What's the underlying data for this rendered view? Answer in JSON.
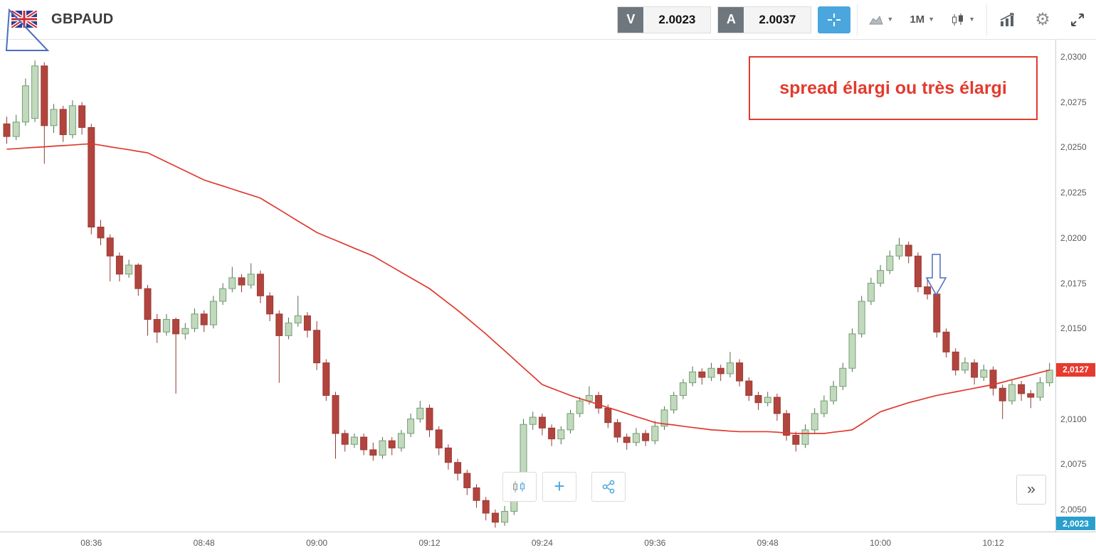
{
  "header": {
    "symbol": "GBPAUD",
    "sell_label": "V",
    "sell_price": "2.0023",
    "buy_label": "A",
    "buy_price": "2.0037",
    "timeframe": "1M"
  },
  "annotations": {
    "spread_note": "spread élargi ou très élargi"
  },
  "price_axis": {
    "ticks": [
      {
        "label": "2,0300",
        "value": 2.03
      },
      {
        "label": "2,0275",
        "value": 2.0275
      },
      {
        "label": "2,0250",
        "value": 2.025
      },
      {
        "label": "2,0225",
        "value": 2.0225
      },
      {
        "label": "2,0200",
        "value": 2.02
      },
      {
        "label": "2,0175",
        "value": 2.0175
      },
      {
        "label": "2,0150",
        "value": 2.015
      },
      {
        "label": "2,0100",
        "value": 2.01
      },
      {
        "label": "2,0075",
        "value": 2.0075
      },
      {
        "label": "2,0050",
        "value": 2.005
      }
    ],
    "current_tag": {
      "label": "2,0127",
      "value": 2.0127
    },
    "bid_tag": {
      "label": "2,0023",
      "value": 2.0023
    }
  },
  "time_axis": {
    "ticks": [
      "08:36",
      "08:48",
      "09:00",
      "09:12",
      "09:24",
      "09:36",
      "09:48",
      "10:00",
      "10:12"
    ]
  },
  "bottom_toolbar": {
    "collapse_label": "»"
  },
  "colors": {
    "candle_up_fill": "#c2d9bd",
    "candle_up_stroke": "#74a074",
    "candle_down_fill": "#b2443e",
    "candle_down_stroke": "#9c3a34",
    "wick_up": "#4f6f4f",
    "wick_down": "#933a35",
    "ma_line": "#e0392e",
    "accent_blue": "#4ba6de",
    "tag_red": "#e8392e",
    "tag_blue": "#2a9fcc",
    "annotation_red": "#e23b2e",
    "annotation_blue": "#4a6fbf"
  },
  "chart_data": {
    "type": "candlestick",
    "symbol": "GBPAUD",
    "interval": "1M",
    "start_time": "08:27",
    "interval_minutes": 1,
    "price_range_visible": [
      2.004,
      2.0305
    ],
    "overlay": "red moving-average line ending at 2.0127",
    "ohlc": [
      [
        2.0263,
        2.0267,
        2.0252,
        2.0256
      ],
      [
        2.0256,
        2.0268,
        2.0254,
        2.0264
      ],
      [
        2.0264,
        2.0288,
        2.0262,
        2.0284
      ],
      [
        2.0266,
        2.0298,
        2.0264,
        2.0295
      ],
      [
        2.0295,
        2.0297,
        2.0241,
        2.0262
      ],
      [
        2.0262,
        2.0274,
        2.0258,
        2.0271
      ],
      [
        2.0271,
        2.0273,
        2.0253,
        2.0257
      ],
      [
        2.0257,
        2.0276,
        2.0255,
        2.0273
      ],
      [
        2.0273,
        2.0275,
        2.0257,
        2.0261
      ],
      [
        2.0261,
        2.0263,
        2.0202,
        2.0206
      ],
      [
        2.0206,
        2.021,
        2.0196,
        2.02
      ],
      [
        2.02,
        2.0202,
        2.0176,
        2.019
      ],
      [
        2.019,
        2.0192,
        2.0176,
        2.018
      ],
      [
        2.018,
        2.0188,
        2.0178,
        2.0185
      ],
      [
        2.0185,
        2.0186,
        2.0168,
        2.0172
      ],
      [
        2.0172,
        2.0174,
        2.0146,
        2.0155
      ],
      [
        2.0155,
        2.0158,
        2.0142,
        2.0148
      ],
      [
        2.0148,
        2.0158,
        2.0146,
        2.0155
      ],
      [
        2.0155,
        2.0156,
        2.0114,
        2.0147
      ],
      [
        2.0147,
        2.0153,
        2.0144,
        2.015
      ],
      [
        2.015,
        2.0161,
        2.0148,
        2.0158
      ],
      [
        2.0158,
        2.016,
        2.0148,
        2.0152
      ],
      [
        2.0152,
        2.0168,
        2.015,
        2.0165
      ],
      [
        2.0165,
        2.0175,
        2.0163,
        2.0172
      ],
      [
        2.0172,
        2.0184,
        2.017,
        2.0178
      ],
      [
        2.0178,
        2.018,
        2.017,
        2.0174
      ],
      [
        2.0174,
        2.0186,
        2.0172,
        2.018
      ],
      [
        2.018,
        2.0182,
        2.0164,
        2.0168
      ],
      [
        2.0168,
        2.017,
        2.0154,
        2.0158
      ],
      [
        2.0158,
        2.016,
        2.012,
        2.0146
      ],
      [
        2.0146,
        2.0156,
        2.0144,
        2.0153
      ],
      [
        2.0153,
        2.0168,
        2.0151,
        2.0157
      ],
      [
        2.0157,
        2.0159,
        2.0145,
        2.0149
      ],
      [
        2.0149,
        2.0154,
        2.0127,
        2.0131
      ],
      [
        2.0131,
        2.0133,
        2.011,
        2.0113
      ],
      [
        2.0113,
        2.0115,
        2.0078,
        2.0092
      ],
      [
        2.0092,
        2.0094,
        2.0082,
        2.0086
      ],
      [
        2.0086,
        2.0092,
        2.0084,
        2.009
      ],
      [
        2.009,
        2.0092,
        2.008,
        2.0083
      ],
      [
        2.0083,
        2.0087,
        2.0077,
        2.008
      ],
      [
        2.008,
        2.009,
        2.0078,
        2.0088
      ],
      [
        2.0088,
        2.009,
        2.008,
        2.0084
      ],
      [
        2.0084,
        2.0094,
        2.0082,
        2.0092
      ],
      [
        2.0092,
        2.0103,
        2.009,
        2.01
      ],
      [
        2.01,
        2.011,
        2.0098,
        2.0106
      ],
      [
        2.0106,
        2.0108,
        2.009,
        2.0094
      ],
      [
        2.0094,
        2.0096,
        2.008,
        2.0084
      ],
      [
        2.0084,
        2.0086,
        2.0072,
        2.0076
      ],
      [
        2.0076,
        2.0078,
        2.0066,
        2.007
      ],
      [
        2.007,
        2.0072,
        2.0058,
        2.0062
      ],
      [
        2.0062,
        2.0064,
        2.0051,
        2.0055
      ],
      [
        2.0055,
        2.0057,
        2.0044,
        2.0048
      ],
      [
        2.0048,
        2.005,
        2.004,
        2.0043
      ],
      [
        2.0043,
        2.0052,
        2.0041,
        2.0049
      ],
      [
        2.0049,
        2.0068,
        2.0047,
        2.0065
      ],
      [
        2.0065,
        2.01,
        2.0062,
        2.0097
      ],
      [
        2.0097,
        2.0104,
        2.0094,
        2.0101
      ],
      [
        2.0101,
        2.0103,
        2.0091,
        2.0095
      ],
      [
        2.0095,
        2.0097,
        2.0085,
        2.0089
      ],
      [
        2.0089,
        2.0096,
        2.0086,
        2.0094
      ],
      [
        2.0094,
        2.0105,
        2.0092,
        2.0103
      ],
      [
        2.0103,
        2.0112,
        2.0101,
        2.011
      ],
      [
        2.011,
        2.0118,
        2.0108,
        2.0113
      ],
      [
        2.0113,
        2.0115,
        2.0103,
        2.0106
      ],
      [
        2.0106,
        2.0108,
        2.0095,
        2.0098
      ],
      [
        2.0098,
        2.01,
        2.0087,
        2.009
      ],
      [
        2.009,
        2.0092,
        2.0083,
        2.0087
      ],
      [
        2.0087,
        2.0095,
        2.0085,
        2.0092
      ],
      [
        2.0092,
        2.0094,
        2.0085,
        2.0088
      ],
      [
        2.0088,
        2.0099,
        2.0086,
        2.0096
      ],
      [
        2.0096,
        2.0107,
        2.0094,
        2.0105
      ],
      [
        2.0105,
        2.0115,
        2.0103,
        2.0113
      ],
      [
        2.0113,
        2.0122,
        2.0111,
        2.012
      ],
      [
        2.012,
        2.0129,
        2.0118,
        2.0126
      ],
      [
        2.0126,
        2.0128,
        2.0119,
        2.0123
      ],
      [
        2.0123,
        2.0131,
        2.0121,
        2.0128
      ],
      [
        2.0128,
        2.013,
        2.0121,
        2.0125
      ],
      [
        2.0125,
        2.0137,
        2.0123,
        2.0131
      ],
      [
        2.0131,
        2.0133,
        2.0118,
        2.0121
      ],
      [
        2.0121,
        2.0123,
        2.011,
        2.0113
      ],
      [
        2.0113,
        2.0115,
        2.0105,
        2.0109
      ],
      [
        2.0109,
        2.0115,
        2.0107,
        2.0112
      ],
      [
        2.0112,
        2.0114,
        2.0099,
        2.0103
      ],
      [
        2.0103,
        2.0105,
        2.0088,
        2.0091
      ],
      [
        2.0091,
        2.0093,
        2.0082,
        2.0086
      ],
      [
        2.0086,
        2.0097,
        2.0084,
        2.0094
      ],
      [
        2.0094,
        2.0106,
        2.0092,
        2.0103
      ],
      [
        2.0103,
        2.0113,
        2.0101,
        2.011
      ],
      [
        2.011,
        2.0121,
        2.0108,
        2.0118
      ],
      [
        2.0118,
        2.0131,
        2.0116,
        2.0128
      ],
      [
        2.0128,
        2.015,
        2.0126,
        2.0147
      ],
      [
        2.0147,
        2.0168,
        2.0145,
        2.0165
      ],
      [
        2.0165,
        2.0178,
        2.0163,
        2.0175
      ],
      [
        2.0175,
        2.0185,
        2.0173,
        2.0182
      ],
      [
        2.0182,
        2.0193,
        2.018,
        2.019
      ],
      [
        2.019,
        2.02,
        2.0188,
        2.0196
      ],
      [
        2.0196,
        2.0198,
        2.0186,
        2.019
      ],
      [
        2.019,
        2.0192,
        2.017,
        2.0173
      ],
      [
        2.0173,
        2.0178,
        2.0166,
        2.0169
      ],
      [
        2.0169,
        2.0171,
        2.0145,
        2.0148
      ],
      [
        2.0148,
        2.015,
        2.0134,
        2.0137
      ],
      [
        2.0137,
        2.0139,
        2.0124,
        2.0127
      ],
      [
        2.0127,
        2.0134,
        2.0125,
        2.0131
      ],
      [
        2.0131,
        2.0133,
        2.0119,
        2.0123
      ],
      [
        2.0123,
        2.013,
        2.0121,
        2.0127
      ],
      [
        2.0127,
        2.0129,
        2.0113,
        2.0117
      ],
      [
        2.0117,
        2.0119,
        2.01,
        2.011
      ],
      [
        2.011,
        2.0122,
        2.0108,
        2.0119
      ],
      [
        2.0119,
        2.0121,
        2.011,
        2.0114
      ],
      [
        2.0114,
        2.0116,
        2.0106,
        2.0112
      ],
      [
        2.0112,
        2.0123,
        2.011,
        2.012
      ],
      [
        2.012,
        2.0131,
        2.0118,
        2.0127
      ]
    ],
    "ma": [
      2.0249,
      2.02493,
      2.02497,
      2.025,
      2.02503,
      2.02507,
      2.0251,
      2.02513,
      2.02517,
      2.0252,
      2.02512,
      2.02503,
      2.02495,
      2.02487,
      2.02478,
      2.0247,
      2.02445,
      2.0242,
      2.02395,
      2.0237,
      2.02345,
      2.0232,
      2.02303,
      2.02287,
      2.0227,
      2.02253,
      2.02237,
      2.0222,
      2.02188,
      2.02157,
      2.02125,
      2.02093,
      2.02062,
      2.0203,
      2.02008,
      2.01987,
      2.01965,
      2.01943,
      2.01922,
      2.019,
      2.0187,
      2.0184,
      2.0181,
      2.0178,
      2.0175,
      2.0172,
      2.0168,
      2.0164,
      2.016,
      2.01557,
      2.01513,
      2.0147,
      2.01423,
      2.01377,
      2.0133,
      2.01283,
      2.01237,
      2.0119,
      2.0117,
      2.0115,
      2.0113,
      2.01113,
      2.01097,
      2.0108,
      2.01063,
      2.01047,
      2.0103,
      2.01013,
      2.00997,
      2.0098,
      2.00973,
      2.00967,
      2.0096,
      2.00953,
      2.00947,
      2.0094,
      2.00937,
      2.00933,
      2.0093,
      2.0093,
      2.0093,
      2.0093,
      2.00927,
      2.00923,
      2.0092,
      2.0092,
      2.0092,
      2.0092,
      2.00927,
      2.00933,
      2.0094,
      2.00973,
      2.01007,
      2.0104,
      2.01057,
      2.01073,
      2.0109,
      2.01103,
      2.01117,
      2.0113,
      2.0114,
      2.0115,
      2.0116,
      2.0117,
      2.0118,
      2.0119,
      2.01203,
      2.01217,
      2.0123,
      2.01243,
      2.01257,
      2.0127
    ]
  }
}
